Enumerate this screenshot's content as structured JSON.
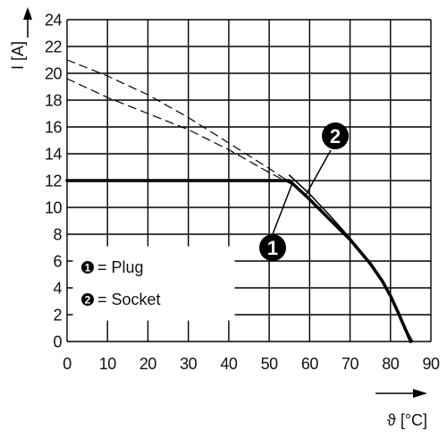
{
  "chart_data": {
    "type": "line",
    "xlabel": "ϑ [°C]",
    "ylabel": "I [A]",
    "xlim": [
      0,
      90
    ],
    "ylim": [
      0,
      24
    ],
    "x_ticks": [
      "0",
      "10",
      "20",
      "30",
      "40",
      "50",
      "60",
      "70",
      "80",
      "90"
    ],
    "y_ticks": [
      "0",
      "2",
      "4",
      "6",
      "8",
      "10",
      "12",
      "14",
      "16",
      "18",
      "20",
      "22",
      "24"
    ],
    "grid": true,
    "legend_position": "bottom-left",
    "legend": [
      {
        "marker": "1",
        "label": "= Plug"
      },
      {
        "marker": "2",
        "label": "= Socket"
      }
    ],
    "series": [
      {
        "style": "solid-thick",
        "color": "#000000",
        "x": [
          0,
          55,
          60,
          65,
          70,
          75,
          78,
          80,
          82,
          83,
          84,
          85
        ],
        "y": [
          12,
          12,
          10.6,
          9.1,
          7.6,
          5.8,
          4.5,
          3.4,
          2.1,
          1.4,
          0.7,
          0
        ]
      },
      {
        "style": "solid-thin",
        "color": "#000000",
        "x": [
          55,
          60,
          65,
          70,
          75,
          78,
          80,
          82,
          83,
          84,
          85.5
        ],
        "y": [
          12.4,
          11.0,
          9.4,
          7.7,
          5.9,
          4.6,
          3.5,
          2.2,
          1.5,
          0.8,
          0
        ]
      },
      {
        "style": "dashed",
        "color": "#000000",
        "x": [
          0,
          10,
          20,
          30,
          40,
          50,
          55
        ],
        "y": [
          21,
          19.8,
          18.4,
          16.7,
          14.8,
          12.9,
          11.9
        ]
      },
      {
        "style": "dashed",
        "color": "#000000",
        "x": [
          0,
          10,
          20,
          30,
          40,
          50,
          57
        ],
        "y": [
          19.6,
          18.2,
          17.0,
          15.8,
          14.3,
          12.6,
          11.5
        ]
      }
    ],
    "annotations": [
      {
        "text": "1",
        "points_to": [
          54.5,
          12
        ]
      },
      {
        "text": "2",
        "points_to": [
          57,
          11.5
        ]
      }
    ]
  }
}
